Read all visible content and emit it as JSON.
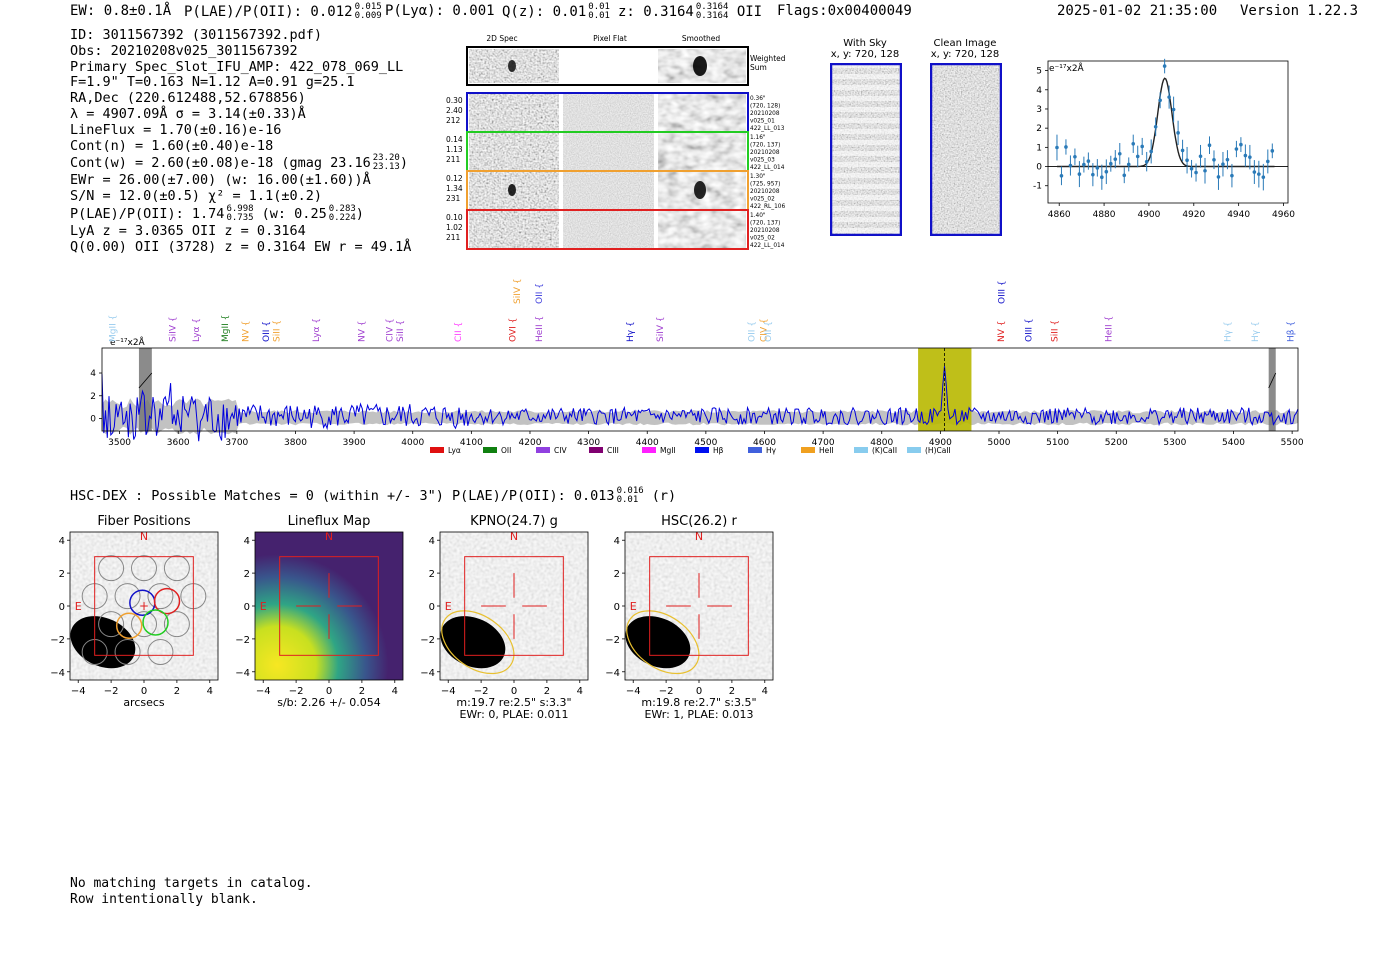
{
  "header": {
    "ew": "EW: 0.8±0.1Å",
    "plae_label": "P(LAE)/P(OII): 0.012",
    "plae_hi": "0.015",
    "plae_lo": "0.009",
    "plya": "P(Lyα): 0.001",
    "qz_label": "Q(z): 0.01",
    "qz_hi": "0.01",
    "qz_lo": "0.01",
    "z_label": "z: 0.3164",
    "z_hi": "0.3164",
    "z_lo": "0.3164",
    "z_line": "OII",
    "flags": "Flags:0x00400049",
    "datetime": "2025-01-02 21:35:00",
    "version": "Version 1.22.3"
  },
  "info": {
    "l1": "ID: 3011567392 (3011567392.pdf)",
    "l2": "Obs: 20210208v025_3011567392",
    "l3": "Primary Spec_Slot_IFU_AMP: 422_078_069_LL",
    "l4": "F=1.9\"  T=0.163  N=1.12  A=0.91  g=25.1",
    "l5": "RA,Dec (220.612488,52.678856)",
    "l6": "λ = 4907.09Å  σ = 3.14(±0.33)Å",
    "l7": "LineFlux = 1.70(±0.16)e-16",
    "l8": "Cont(n) = 1.60(±0.40)e-18",
    "l9": "Cont(w) = 2.60(±0.08)e-18 (gmag 23.16",
    "l9_hi": "23.20",
    "l9_lo": "23.13",
    "l10": "EWr = 26.00(±7.00) (w: 16.00(±1.60))Å",
    "l11": "S/N = 12.0(±0.5)  χ² = 1.1(±0.2)",
    "l12a": "P(LAE)/P(OII): 1.74",
    "l12_hi": "6.998",
    "l12_lo": "0.735",
    "l12b": "(w: 0.25",
    "l12b_hi": "0.283",
    "l12b_lo": "0.224",
    "l13": "LyA z = 3.0365  OII z = 0.3164",
    "l14": "Q(0.00) OII (3728) z = 0.3164  EW r = 49.1Å"
  },
  "cutouts": {
    "col_labels": [
      "2D Spec",
      "Pixel Flat",
      "Smoothed"
    ],
    "weighted_sum": [
      "Weighted",
      "Sum"
    ],
    "rows": [
      {
        "left": [
          "0.30",
          "2.40",
          "212"
        ],
        "right": [
          "0.36\"",
          "(720, 128)",
          "20210208",
          "v025_01",
          "422_LL_013"
        ],
        "color": "#1010c8"
      },
      {
        "left": [
          "0.14",
          "1.13",
          "211"
        ],
        "right": [
          "1.16\"",
          "(720, 137)",
          "20210208",
          "v025_03",
          "422_LL_014"
        ],
        "color": "#22cc22"
      },
      {
        "left": [
          "0.12",
          "1.34",
          "231"
        ],
        "right": [
          "1.30\"",
          "(725, 957)",
          "20210208",
          "v025_02",
          "422_RL_106"
        ],
        "color": "#f0a030"
      },
      {
        "left": [
          "0.10",
          "1.02",
          "211"
        ],
        "right": [
          "1.40\"",
          "(720, 137)",
          "20210208",
          "v025_02",
          "422_LL_014"
        ],
        "color": "#e02020"
      }
    ],
    "with_sky": [
      "With Sky",
      "x, y: 720, 128"
    ],
    "clean_image": [
      "Clean Image",
      "x, y: 720, 128"
    ]
  },
  "zoom_chart": {
    "type": "scatter",
    "unit_label": "e⁻¹⁷x2Å",
    "xlim": [
      4855,
      4962
    ],
    "ylim": [
      -1.9,
      5.5
    ],
    "xticks": [
      4860,
      4880,
      4900,
      4920,
      4940,
      4960
    ],
    "yticks": [
      5,
      4,
      3,
      2,
      1,
      0,
      -1
    ],
    "gauss": {
      "amp": 4.6,
      "center": 4907.1,
      "sigma": 3.14
    }
  },
  "spectrum": {
    "type": "line",
    "unit_label": "e⁻¹⁷x2Å",
    "xlim": [
      3470,
      5510
    ],
    "ylim": [
      -1.1,
      6.2
    ],
    "xticks": [
      3500,
      3600,
      3700,
      3800,
      3900,
      4000,
      4100,
      4200,
      4300,
      4400,
      4500,
      4600,
      4700,
      4800,
      4900,
      5000,
      5100,
      5200,
      5300,
      5400,
      5500
    ],
    "yticks": [
      4,
      2,
      0
    ],
    "highlight": [
      4862,
      4953
    ],
    "line_at": 4907.1,
    "grey_bands": [
      [
        3533,
        3555
      ],
      [
        5460,
        5472
      ]
    ],
    "lines": [
      {
        "name": "MgII",
        "w": 3488,
        "color": "#99ccee",
        "row": 2
      },
      {
        "name": "SiIV",
        "w": 3590,
        "color": "#a040d0",
        "row": 2
      },
      {
        "name": "Lyα",
        "w": 3630,
        "color": "#a040d0",
        "row": 2
      },
      {
        "name": "MgII",
        "w": 3680,
        "color": "#208020",
        "row": 2
      },
      {
        "name": "NV",
        "w": 3715,
        "color": "#f0a030",
        "row": 2
      },
      {
        "name": "OII",
        "w": 3750,
        "color": "#1010c8",
        "row": 2
      },
      {
        "name": "SiII",
        "w": 3768,
        "color": "#f0a030",
        "row": 2
      },
      {
        "name": "Lyα",
        "w": 3835,
        "color": "#a040d0",
        "row": 2
      },
      {
        "name": "NV",
        "w": 3913,
        "color": "#a040d0",
        "row": 2
      },
      {
        "name": "CIV",
        "w": 3960,
        "color": "#a040d0",
        "row": 2
      },
      {
        "name": "SiII",
        "w": 3978,
        "color": "#a040d0",
        "row": 2
      },
      {
        "name": "CII",
        "w": 4077,
        "color": "#ff40ff",
        "row": 2
      },
      {
        "name": "OVI",
        "w": 4170,
        "color": "#e02020",
        "row": 2
      },
      {
        "name": "SiIV",
        "w": 4178,
        "color": "#f0a030",
        "row": 1
      },
      {
        "name": "OII",
        "w": 4215,
        "color": "#4040dd",
        "row": 1
      },
      {
        "name": "HeII",
        "w": 4215,
        "color": "#a040d0",
        "row": 2
      },
      {
        "name": "Hγ",
        "w": 4371,
        "color": "#1010c8",
        "row": 2
      },
      {
        "name": "SiIV",
        "w": 4422,
        "color": "#a040d0",
        "row": 2
      },
      {
        "name": "OII",
        "w": 4578,
        "color": "#99ccee",
        "row": 2
      },
      {
        "name": "CIV",
        "w": 4598,
        "color": "#f0a030",
        "row": 2
      },
      {
        "name": "OII",
        "w": 4606,
        "color": "#99ccee",
        "row": 2
      },
      {
        "name": "OIII",
        "w": 5004,
        "color": "#1010c8",
        "row": 1
      },
      {
        "name": "NV",
        "w": 5003,
        "color": "#e02020",
        "row": 2
      },
      {
        "name": "OIII",
        "w": 5050,
        "color": "#1010c8",
        "row": 2
      },
      {
        "name": "SiII",
        "w": 5095,
        "color": "#e02020",
        "row": 2
      },
      {
        "name": "HeII",
        "w": 5187,
        "color": "#a040d0",
        "row": 2
      },
      {
        "name": "Hγ",
        "w": 5390,
        "color": "#99ccee",
        "row": 2
      },
      {
        "name": "Hγ",
        "w": 5437,
        "color": "#99ccee",
        "row": 2
      },
      {
        "name": "Hβ",
        "w": 5497,
        "color": "#4060dd",
        "row": 2
      }
    ],
    "legend": [
      {
        "name": "Lyα",
        "color": "#e01010"
      },
      {
        "name": "OII",
        "color": "#108010"
      },
      {
        "name": "CIV",
        "color": "#9040e0"
      },
      {
        "name": "CIII",
        "color": "#800070"
      },
      {
        "name": "MgII",
        "color": "#ff20ff"
      },
      {
        "name": "Hβ",
        "color": "#0010f0"
      },
      {
        "name": "Hγ",
        "color": "#4060dd"
      },
      {
        "name": "HeII",
        "color": "#f0a020"
      },
      {
        "name": "(K)CaII",
        "color": "#88ccee"
      },
      {
        "name": "(H)CaII",
        "color": "#88ccee"
      }
    ]
  },
  "hsc": {
    "line": "HSC-DEX : Possible Matches = 0 (within +/- 3\")  P(LAE)/P(OII): 0.013",
    "hi": "0.016",
    "lo": "0.01",
    "band": "(r)"
  },
  "panels": [
    {
      "title": "Fiber Positions",
      "sub1": "arcsecs",
      "sub2": "",
      "sub3": ""
    },
    {
      "title": "Lineflux Map",
      "sub1": "s/b: 2.26 +/- 0.054",
      "sub2": "",
      "sub3": ""
    },
    {
      "title": "KPNO(24.7) g",
      "sub1": "m:19.7  re:2.5\"  s:3.3\"",
      "sub2": "EWr: 0, PLAE: 0.011",
      "sub3": ""
    },
    {
      "title": "HSC(26.2) r",
      "sub1": "m:19.8  re:2.7\"  s:3.5\"",
      "sub2": "EWr: 1, PLAE: 0.013",
      "sub3": ""
    }
  ],
  "panel_axes": {
    "ticks": [
      -4,
      -2,
      0,
      2,
      4
    ],
    "n_label": "N",
    "e_label": "E"
  },
  "footer": {
    "l1": "No matching targets in catalog.",
    "l2": "Row intentionally blank."
  }
}
